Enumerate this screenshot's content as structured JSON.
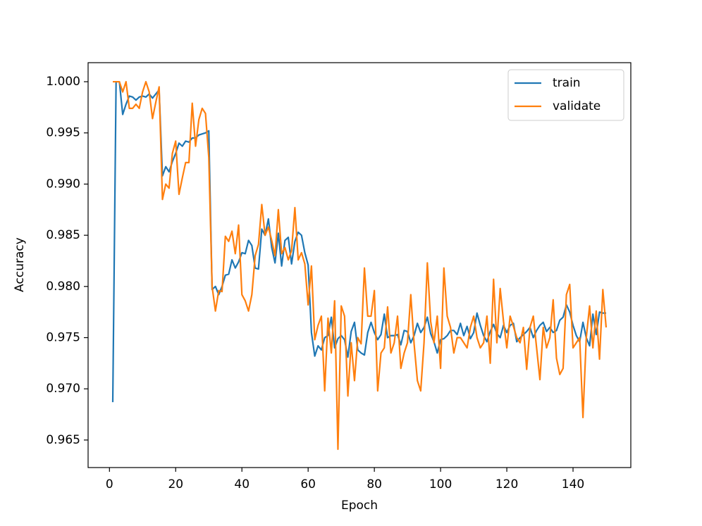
{
  "chart_data": {
    "type": "line",
    "xlabel": "Epoch",
    "ylabel": "Accuracy",
    "x": [
      1,
      2,
      3,
      4,
      5,
      6,
      7,
      8,
      9,
      10,
      11,
      12,
      13,
      14,
      15,
      16,
      17,
      18,
      19,
      20,
      21,
      22,
      23,
      24,
      25,
      26,
      27,
      28,
      29,
      30,
      31,
      32,
      33,
      34,
      35,
      36,
      37,
      38,
      39,
      40,
      41,
      42,
      43,
      44,
      45,
      46,
      47,
      48,
      49,
      50,
      51,
      52,
      53,
      54,
      55,
      56,
      57,
      58,
      59,
      60,
      61,
      62,
      63,
      64,
      65,
      66,
      67,
      68,
      69,
      70,
      71,
      72,
      73,
      74,
      75,
      76,
      77,
      78,
      79,
      80,
      81,
      82,
      83,
      84,
      85,
      86,
      87,
      88,
      89,
      90,
      91,
      92,
      93,
      94,
      95,
      96,
      97,
      98,
      99,
      100,
      101,
      102,
      103,
      104,
      105,
      106,
      107,
      108,
      109,
      110,
      111,
      112,
      113,
      114,
      115,
      116,
      117,
      118,
      119,
      120,
      121,
      122,
      123,
      124,
      125,
      126,
      127,
      128,
      129,
      130,
      131,
      132,
      133,
      134,
      135,
      136,
      137,
      138,
      139,
      140,
      141,
      142,
      143,
      144,
      145,
      146,
      147,
      148,
      149,
      150
    ],
    "series": [
      {
        "name": "train",
        "color": "#1f77b4",
        "values": [
          0.9687,
          1.0,
          1.0,
          0.9968,
          0.9978,
          0.9986,
          0.9985,
          0.9982,
          0.9985,
          0.9986,
          0.9985,
          0.9988,
          0.9984,
          0.9988,
          0.9992,
          0.9908,
          0.9917,
          0.9912,
          0.9922,
          0.993,
          0.994,
          0.9937,
          0.9942,
          0.9941,
          0.9945,
          0.9945,
          0.9948,
          0.9949,
          0.995,
          0.9952,
          0.9797,
          0.98,
          0.9792,
          0.98,
          0.9811,
          0.9812,
          0.9826,
          0.9818,
          0.9824,
          0.9833,
          0.9832,
          0.9845,
          0.984,
          0.9818,
          0.9817,
          0.9856,
          0.985,
          0.9866,
          0.9838,
          0.9823,
          0.9852,
          0.982,
          0.9845,
          0.9848,
          0.9822,
          0.9844,
          0.9853,
          0.985,
          0.9833,
          0.9821,
          0.9755,
          0.9732,
          0.9742,
          0.9738,
          0.975,
          0.9752,
          0.977,
          0.974,
          0.9749,
          0.9752,
          0.9748,
          0.9731,
          0.9756,
          0.9765,
          0.9738,
          0.9735,
          0.9733,
          0.9755,
          0.9765,
          0.9755,
          0.9748,
          0.9753,
          0.9773,
          0.975,
          0.9752,
          0.9752,
          0.9753,
          0.9743,
          0.9757,
          0.9756,
          0.9745,
          0.9752,
          0.9764,
          0.9755,
          0.976,
          0.977,
          0.9754,
          0.9746,
          0.9735,
          0.9748,
          0.9749,
          0.9752,
          0.9757,
          0.9757,
          0.9753,
          0.9764,
          0.9752,
          0.9761,
          0.9749,
          0.9755,
          0.9774,
          0.9762,
          0.9752,
          0.9746,
          0.9756,
          0.9763,
          0.9754,
          0.975,
          0.9762,
          0.9755,
          0.9762,
          0.9764,
          0.9746,
          0.975,
          0.9753,
          0.9756,
          0.976,
          0.975,
          0.9757,
          0.9762,
          0.9765,
          0.9756,
          0.976,
          0.9755,
          0.9757,
          0.9767,
          0.977,
          0.9782,
          0.9775,
          0.9762,
          0.9752,
          0.9746,
          0.9765,
          0.975,
          0.9742,
          0.9773,
          0.9753,
          0.9775,
          0.9774,
          0.9774
        ]
      },
      {
        "name": "validate",
        "color": "#ff7f0e",
        "values": [
          1.0,
          1.0,
          1.0,
          0.999,
          1.0,
          0.9974,
          0.9974,
          0.9978,
          0.9974,
          0.999,
          1.0,
          0.999,
          0.9964,
          0.998,
          0.9995,
          0.9885,
          0.99,
          0.9896,
          0.993,
          0.9942,
          0.989,
          0.9906,
          0.9921,
          0.9921,
          0.9979,
          0.9937,
          0.9963,
          0.9974,
          0.9969,
          0.9926,
          0.98,
          0.9776,
          0.9796,
          0.9795,
          0.9849,
          0.9844,
          0.9854,
          0.9832,
          0.986,
          0.9792,
          0.9786,
          0.9776,
          0.9792,
          0.983,
          0.9841,
          0.988,
          0.985,
          0.9858,
          0.9845,
          0.983,
          0.9875,
          0.9832,
          0.9838,
          0.9826,
          0.9835,
          0.9877,
          0.9826,
          0.9833,
          0.9822,
          0.9782,
          0.982,
          0.9748,
          0.9762,
          0.9771,
          0.9698,
          0.9769,
          0.9735,
          0.9786,
          0.9641,
          0.9781,
          0.9771,
          0.9693,
          0.9745,
          0.9708,
          0.975,
          0.9744,
          0.9818,
          0.9771,
          0.9771,
          0.9796,
          0.9698,
          0.9735,
          0.974,
          0.978,
          0.9735,
          0.9745,
          0.9771,
          0.972,
          0.9735,
          0.9745,
          0.9792,
          0.9744,
          0.9708,
          0.9698,
          0.9745,
          0.9823,
          0.9766,
          0.9745,
          0.9771,
          0.972,
          0.9818,
          0.9771,
          0.976,
          0.9735,
          0.975,
          0.975,
          0.9745,
          0.974,
          0.976,
          0.9771,
          0.975,
          0.974,
          0.9745,
          0.9771,
          0.9725,
          0.9807,
          0.9745,
          0.9798,
          0.9766,
          0.974,
          0.9771,
          0.9761,
          0.975,
          0.9745,
          0.976,
          0.9719,
          0.976,
          0.9771,
          0.974,
          0.9709,
          0.976,
          0.974,
          0.975,
          0.9787,
          0.973,
          0.9714,
          0.972,
          0.9792,
          0.9802,
          0.974,
          0.9745,
          0.975,
          0.9672,
          0.975,
          0.9781,
          0.974,
          0.9776,
          0.9729,
          0.9797,
          0.976
        ]
      }
    ],
    "xlim": [
      -6.45,
      157.45
    ],
    "xticks": [
      0,
      20,
      40,
      60,
      80,
      100,
      120,
      140
    ],
    "ylim": [
      0.96231,
      1.00186
    ],
    "yticks": [
      0.965,
      {
        "value": 0.97,
        "label": "0.970"
      },
      0.975,
      {
        "value": 0.98,
        "label": "0.980"
      },
      0.985,
      {
        "value": 0.99,
        "label": "0.990"
      },
      0.995,
      {
        "value": 1.0,
        "label": "1.000"
      }
    ],
    "grid": false,
    "legend": "upper right"
  }
}
